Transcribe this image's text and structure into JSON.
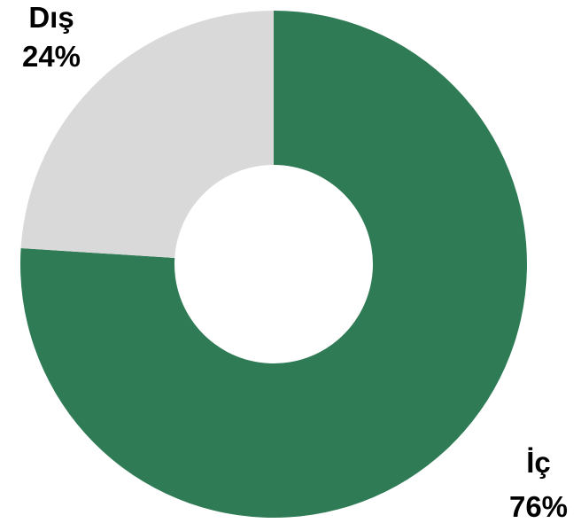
{
  "chart_data": {
    "type": "pie",
    "variant": "donut",
    "slices": [
      {
        "label": "İç",
        "value": 76,
        "value_text": "76%",
        "color": "#2e7b55"
      },
      {
        "label": "Dış",
        "value": 24,
        "value_text": "24%",
        "color": "#d9d9d9"
      }
    ],
    "legend": "none",
    "data_labels": "outside"
  }
}
